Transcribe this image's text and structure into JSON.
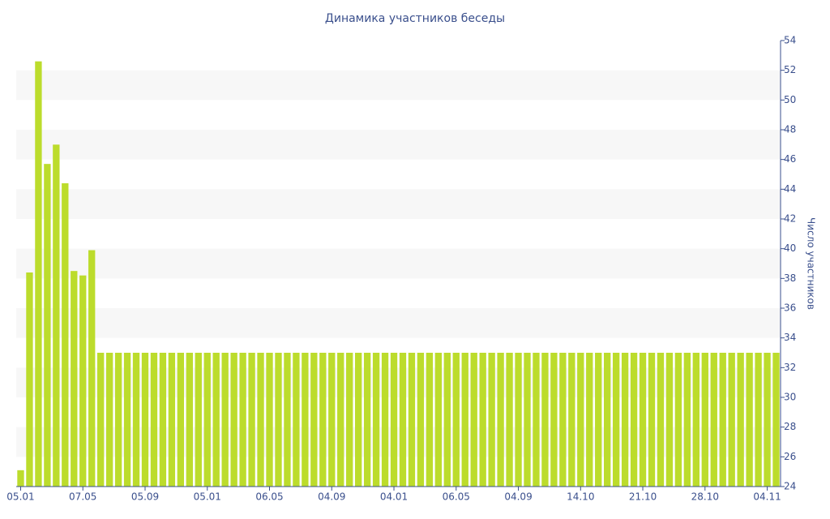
{
  "chart_data": {
    "type": "bar",
    "title": "Динамика участников беседы",
    "y_axis_label": "Число участников",
    "categories": [
      "05.01",
      null,
      null,
      null,
      null,
      null,
      null,
      "07.05",
      null,
      null,
      null,
      null,
      null,
      null,
      "05.09",
      null,
      null,
      null,
      null,
      null,
      null,
      "05.01",
      null,
      null,
      null,
      null,
      null,
      null,
      "06.05",
      null,
      null,
      null,
      null,
      null,
      null,
      "04.09",
      null,
      null,
      null,
      null,
      null,
      null,
      "04.01",
      null,
      null,
      null,
      null,
      null,
      null,
      "06.05",
      null,
      null,
      null,
      null,
      null,
      null,
      "04.09",
      null,
      null,
      null,
      null,
      null,
      null,
      "14.10",
      null,
      null,
      null,
      null,
      null,
      null,
      "21.10",
      null,
      null,
      null,
      null,
      null,
      null,
      "28.10",
      null,
      null,
      null,
      null,
      null,
      null,
      "04.11",
      null
    ],
    "values": [
      25.1,
      38.4,
      52.6,
      45.7,
      47,
      44.4,
      38.5,
      38.2,
      39.9,
      33,
      33,
      33,
      33,
      33,
      33,
      33,
      33,
      33,
      33,
      33,
      33,
      33,
      33,
      33,
      33,
      33,
      33,
      33,
      33,
      33,
      33,
      33,
      33,
      33,
      33,
      33,
      33,
      33,
      33,
      33,
      33,
      33,
      33,
      33,
      33,
      33,
      33,
      33,
      33,
      33,
      33,
      33,
      33,
      33,
      33,
      33,
      33,
      33,
      33,
      33,
      33,
      33,
      33,
      33,
      33,
      33,
      33,
      33,
      33,
      33,
      33,
      33,
      33,
      33,
      33,
      33,
      33,
      33,
      33,
      33,
      33,
      33,
      33,
      33,
      33,
      33
    ],
    "color": "#bcdc2c",
    "ylim": [
      24,
      54
    ],
    "yticks": [
      24,
      26,
      28,
      30,
      32,
      34,
      36,
      38,
      40,
      42,
      44,
      46,
      48,
      50,
      52,
      54
    ],
    "grid": true,
    "y_axis_side": "right"
  }
}
